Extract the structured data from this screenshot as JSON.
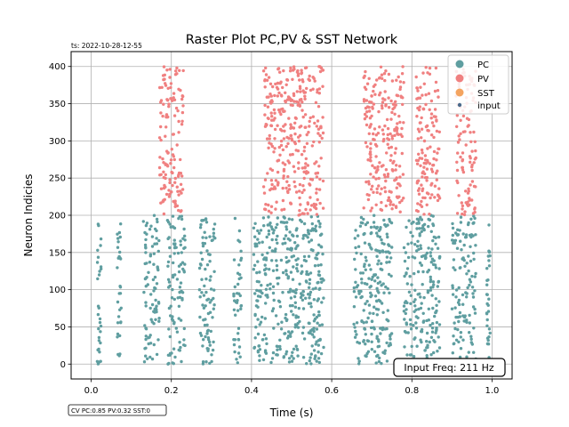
{
  "timestamp": "ts: 2022-10-28-12-55",
  "cv_text": "CV PC:0.85 PV:0.32 SST:0",
  "input_freq_text": "Input Freq: 211 Hz",
  "chart_data": {
    "type": "scatter",
    "title": "Raster Plot PC,PV & SST Network",
    "xlabel": "Time (s)",
    "ylabel": "Neuron Indicies",
    "xlim": [
      -0.05,
      1.05
    ],
    "ylim": [
      -20,
      420
    ],
    "xticks": [
      0.0,
      0.2,
      0.4,
      0.6,
      0.8,
      1.0
    ],
    "xtick_labels": [
      "0.0",
      "0.2",
      "0.4",
      "0.6",
      "0.8",
      "1.0"
    ],
    "yticks": [
      0,
      50,
      100,
      150,
      200,
      250,
      300,
      350,
      400
    ],
    "ytick_labels": [
      "0",
      "50",
      "100",
      "150",
      "200",
      "250",
      "300",
      "350",
      "400"
    ],
    "grid": true,
    "legend_position": "top-right",
    "series": [
      {
        "name": "PC",
        "color": "#5f9ea0",
        "neuron_range": [
          0,
          200
        ],
        "bursts": [
          [
            0.015,
            0.025
          ],
          [
            0.065,
            0.075
          ],
          [
            0.13,
            0.17
          ],
          [
            0.19,
            0.235
          ],
          [
            0.27,
            0.31
          ],
          [
            0.355,
            0.375
          ],
          [
            0.405,
            0.58
          ],
          [
            0.655,
            0.75
          ],
          [
            0.78,
            0.87
          ],
          [
            0.9,
            0.96
          ],
          [
            0.985,
            0.995
          ]
        ]
      },
      {
        "name": "PV",
        "color": "#f08080",
        "neuron_range": [
          200,
          400
        ],
        "bursts": [
          [
            0.17,
            0.23
          ],
          [
            0.43,
            0.58
          ],
          [
            0.68,
            0.78
          ],
          [
            0.81,
            0.87
          ],
          [
            0.91,
            0.96
          ]
        ]
      },
      {
        "name": "SST",
        "color": "#f4a460"
      },
      {
        "name": "input",
        "color": "#4a6a8a"
      }
    ]
  }
}
